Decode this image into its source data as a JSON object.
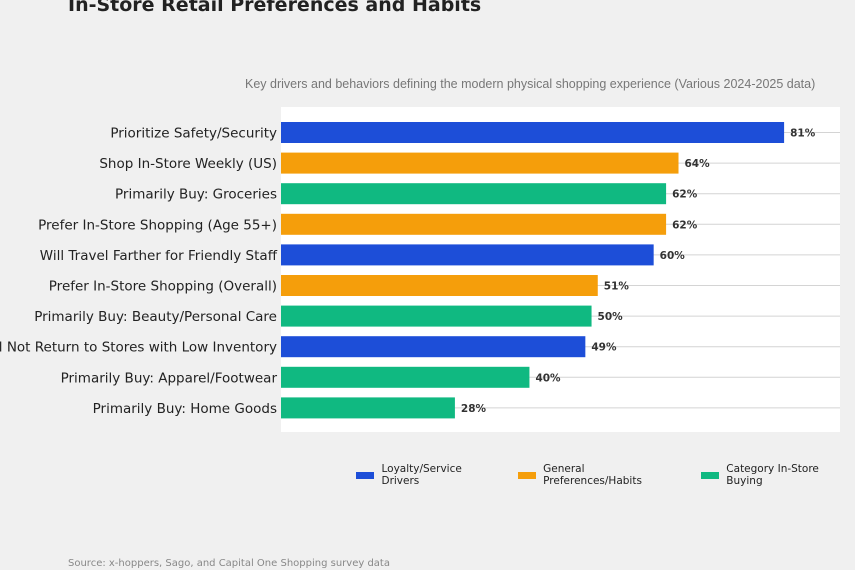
{
  "chart_data": {
    "type": "bar",
    "orientation": "horizontal",
    "title": "In-Store Retail Preferences and Habits",
    "subtitle": "Key drivers and behaviors defining the modern physical shopping experience (Various 2024-2025 data)",
    "source": "Source: x-hoppers, Sago, and Capital One Shopping survey data",
    "xlim": [
      0,
      90
    ],
    "value_suffix": "%",
    "categories": [
      "Prioritize Safety/Security",
      "Shop In-Store Weekly (US)",
      "Primarily Buy: Groceries",
      "Prefer In-Store Shopping (Age 55+)",
      "Will Travel Farther for Friendly Staff",
      "Prefer In-Store Shopping (Overall)",
      "Primarily Buy: Beauty/Personal Care",
      "Will Not Return to Stores with Low Inventory",
      "Primarily Buy: Apparel/Footwear",
      "Primarily Buy: Home Goods"
    ],
    "values": [
      81,
      64,
      62,
      62,
      60,
      51,
      50,
      49,
      40,
      28
    ],
    "groups": [
      0,
      1,
      2,
      1,
      0,
      1,
      2,
      0,
      2,
      2
    ],
    "legend": [
      {
        "name": "Loyalty/Service Drivers",
        "color": "#1d4ed8"
      },
      {
        "name": "General Preferences/Habits",
        "color": "#f59e0b"
      },
      {
        "name": "Category In-Store Buying",
        "color": "#10b981"
      }
    ],
    "legend_position": "bottom-right",
    "grid": "horizontal"
  }
}
